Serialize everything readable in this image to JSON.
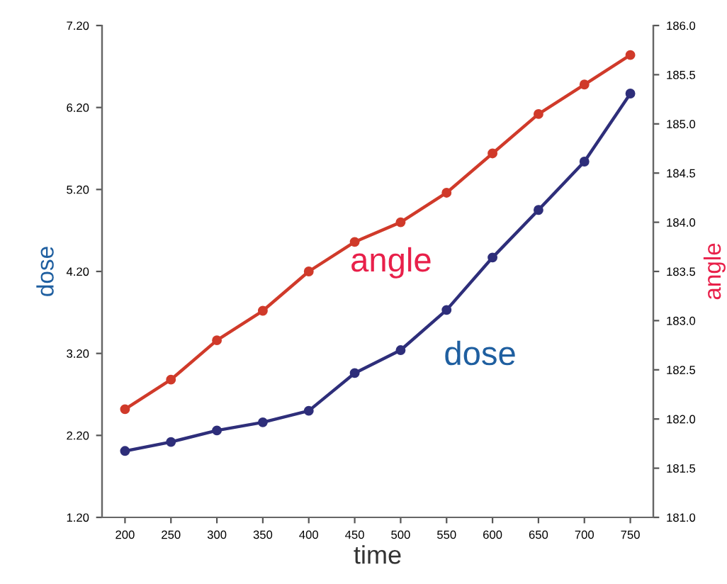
{
  "chart_data": {
    "type": "line",
    "xlabel": "time",
    "ylabel": "dose",
    "y2label": "angle",
    "x": [
      200,
      250,
      300,
      350,
      400,
      450,
      500,
      550,
      600,
      650,
      700,
      750
    ],
    "series": [
      {
        "name": "dose",
        "color": "#2e2e7a",
        "values": [
          2.01,
          2.12,
          2.26,
          2.36,
          2.5,
          2.96,
          3.24,
          3.73,
          4.37,
          4.95,
          5.54,
          6.37
        ]
      },
      {
        "name": "angle",
        "color": "#d03a2a",
        "axis": "y2",
        "values": [
          182.1,
          182.4,
          182.8,
          183.1,
          183.5,
          183.8,
          184.0,
          184.3,
          184.7,
          185.1,
          185.4,
          185.7
        ]
      }
    ],
    "xlim": [
      175,
      775
    ],
    "xticks": [
      200,
      250,
      300,
      350,
      400,
      450,
      500,
      550,
      600,
      650,
      700,
      750
    ],
    "ylim": [
      1.2,
      7.2
    ],
    "yticks": [
      {
        "value": 1.2,
        "label": "1.20"
      },
      {
        "value": 2.2,
        "label": "2.20"
      },
      {
        "value": 3.2,
        "label": "3.20"
      },
      {
        "value": 4.2,
        "label": "4.20"
      },
      {
        "value": 5.2,
        "label": "5.20"
      },
      {
        "value": 6.2,
        "label": "6.20"
      },
      {
        "value": 7.2,
        "label": "7.20"
      }
    ],
    "y2lim": [
      181,
      186
    ],
    "y2ticks": [
      {
        "value": 181,
        "label": "181.0"
      },
      {
        "value": 181.5,
        "label": "181.5"
      },
      {
        "value": 182,
        "label": "182.0"
      },
      {
        "value": 182.5,
        "label": "182.5"
      },
      {
        "value": 183,
        "label": "183.0"
      },
      {
        "value": 183.5,
        "label": "183.5"
      },
      {
        "value": 184,
        "label": "184.0"
      },
      {
        "value": 184.5,
        "label": "184.5"
      },
      {
        "value": 185,
        "label": "185.0"
      },
      {
        "value": 185.5,
        "label": "185.5"
      },
      {
        "value": 186,
        "label": "186.0"
      }
    ],
    "grid": false,
    "legend": false,
    "marker": "circle",
    "line_style": "solid"
  }
}
